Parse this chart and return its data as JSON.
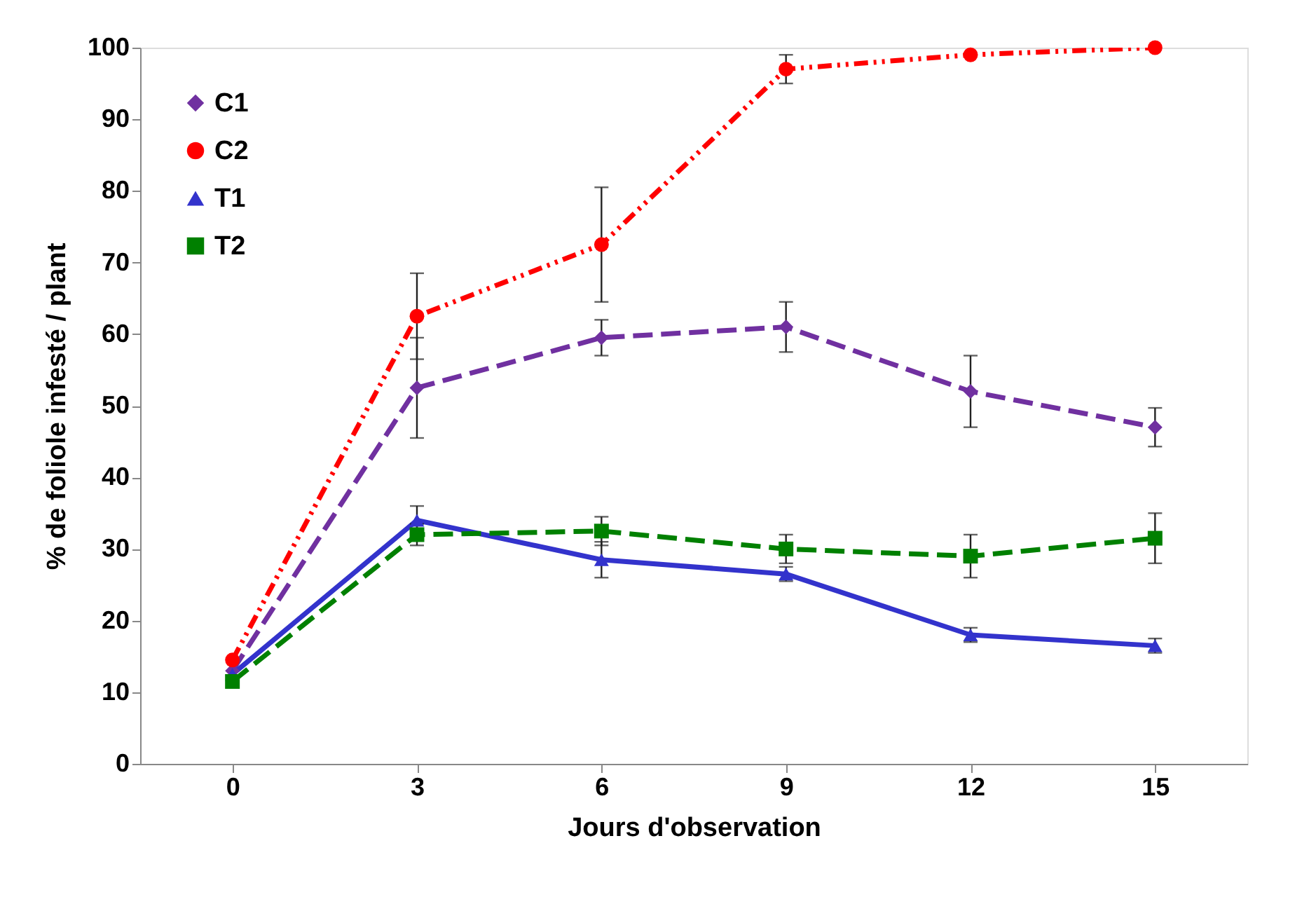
{
  "chart_data": {
    "type": "line",
    "xlabel": "Jours d'observation",
    "ylabel": "% de foliole infesté / plant",
    "x": [
      0,
      3,
      6,
      9,
      12,
      15
    ],
    "series": [
      {
        "name": "C1",
        "color": "#7030a0",
        "marker": "diamond",
        "line_style": "dashed",
        "values": [
          13,
          52.5,
          59.5,
          61,
          52,
          47
        ],
        "errors": [
          null,
          7,
          2.5,
          3.5,
          5,
          2.7
        ]
      },
      {
        "name": "C2",
        "color": "#ff0000",
        "marker": "circle",
        "line_style": "dotted",
        "values": [
          14.5,
          62.5,
          72.5,
          97,
          99,
          100
        ],
        "errors": [
          null,
          6,
          8,
          2,
          null,
          null
        ]
      },
      {
        "name": "T1",
        "color": "#3333cc",
        "marker": "triangle",
        "line_style": "solid",
        "values": [
          12.5,
          34,
          28.5,
          26.5,
          18,
          16.5
        ],
        "errors": [
          null,
          2,
          2.5,
          1,
          1,
          1
        ]
      },
      {
        "name": "T2",
        "color": "#008000",
        "marker": "square",
        "line_style": "dashed",
        "values": [
          11.5,
          32,
          32.5,
          30,
          29,
          31.5
        ],
        "errors": [
          null,
          1.5,
          2,
          2,
          3,
          3.5
        ]
      }
    ],
    "xlim": [
      -1.5,
      16.5
    ],
    "xticks": [
      0,
      3,
      6,
      9,
      12,
      15
    ],
    "ylim": [
      0,
      100
    ],
    "yticks": [
      0,
      10,
      20,
      30,
      40,
      50,
      60,
      70,
      80,
      90,
      100
    ],
    "grid": false,
    "legend": "top left"
  }
}
